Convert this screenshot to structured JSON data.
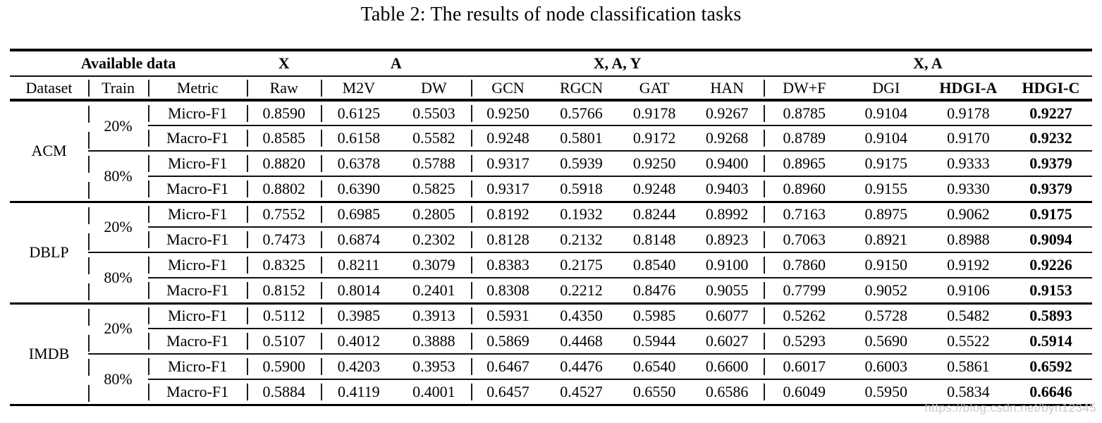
{
  "caption": "Table 2: The results of node classification tasks",
  "watermark": "https://blog.csdn.net/byn12345",
  "table": {
    "group_headers": {
      "available_data": "Available data",
      "x": "X",
      "a": "A",
      "xay": "X, A, Y",
      "xa": "X, A"
    },
    "columns": [
      "Dataset",
      "Train",
      "Metric",
      "Raw",
      "M2V",
      "DW",
      "GCN",
      "RGCN",
      "GAT",
      "HAN",
      "DW+F",
      "DGI",
      "HDGI-A",
      "HDGI-C"
    ],
    "datasets": [
      {
        "name": "ACM",
        "blocks": [
          {
            "train": "20%",
            "rows": [
              {
                "metric": "Micro-F1",
                "values": [
                  "0.8590",
                  "0.6125",
                  "0.5503",
                  "0.9250",
                  "0.5766",
                  "0.9178",
                  "0.9267",
                  "0.8785",
                  "0.9104",
                  "0.9178",
                  "0.9227"
                ]
              },
              {
                "metric": "Macro-F1",
                "values": [
                  "0.8585",
                  "0.6158",
                  "0.5582",
                  "0.9248",
                  "0.5801",
                  "0.9172",
                  "0.9268",
                  "0.8789",
                  "0.9104",
                  "0.9170",
                  "0.9232"
                ]
              }
            ]
          },
          {
            "train": "80%",
            "rows": [
              {
                "metric": "Micro-F1",
                "values": [
                  "0.8820",
                  "0.6378",
                  "0.5788",
                  "0.9317",
                  "0.5939",
                  "0.9250",
                  "0.9400",
                  "0.8965",
                  "0.9175",
                  "0.9333",
                  "0.9379"
                ]
              },
              {
                "metric": "Macro-F1",
                "values": [
                  "0.8802",
                  "0.6390",
                  "0.5825",
                  "0.9317",
                  "0.5918",
                  "0.9248",
                  "0.9403",
                  "0.8960",
                  "0.9155",
                  "0.9330",
                  "0.9379"
                ]
              }
            ]
          }
        ]
      },
      {
        "name": "DBLP",
        "blocks": [
          {
            "train": "20%",
            "rows": [
              {
                "metric": "Micro-F1",
                "values": [
                  "0.7552",
                  "0.6985",
                  "0.2805",
                  "0.8192",
                  "0.1932",
                  "0.8244",
                  "0.8992",
                  "0.7163",
                  "0.8975",
                  "0.9062",
                  "0.9175"
                ]
              },
              {
                "metric": "Macro-F1",
                "values": [
                  "0.7473",
                  "0.6874",
                  "0.2302",
                  "0.8128",
                  "0.2132",
                  "0.8148",
                  "0.8923",
                  "0.7063",
                  "0.8921",
                  "0.8988",
                  "0.9094"
                ]
              }
            ]
          },
          {
            "train": "80%",
            "rows": [
              {
                "metric": "Micro-F1",
                "values": [
                  "0.8325",
                  "0.8211",
                  "0.3079",
                  "0.8383",
                  "0.2175",
                  "0.8540",
                  "0.9100",
                  "0.7860",
                  "0.9150",
                  "0.9192",
                  "0.9226"
                ]
              },
              {
                "metric": "Macro-F1",
                "values": [
                  "0.8152",
                  "0.8014",
                  "0.2401",
                  "0.8308",
                  "0.2212",
                  "0.8476",
                  "0.9055",
                  "0.7799",
                  "0.9052",
                  "0.9106",
                  "0.9153"
                ]
              }
            ]
          }
        ]
      },
      {
        "name": "IMDB",
        "blocks": [
          {
            "train": "20%",
            "rows": [
              {
                "metric": "Micro-F1",
                "values": [
                  "0.5112",
                  "0.3985",
                  "0.3913",
                  "0.5931",
                  "0.4350",
                  "0.5985",
                  "0.6077",
                  "0.5262",
                  "0.5728",
                  "0.5482",
                  "0.5893"
                ]
              },
              {
                "metric": "Macro-F1",
                "values": [
                  "0.5107",
                  "0.4012",
                  "0.3888",
                  "0.5869",
                  "0.4468",
                  "0.5944",
                  "0.6027",
                  "0.5293",
                  "0.5690",
                  "0.5522",
                  "0.5914"
                ]
              }
            ]
          },
          {
            "train": "80%",
            "rows": [
              {
                "metric": "Micro-F1",
                "values": [
                  "0.5900",
                  "0.4203",
                  "0.3953",
                  "0.6467",
                  "0.4476",
                  "0.6540",
                  "0.6600",
                  "0.6017",
                  "0.6003",
                  "0.5861",
                  "0.6592"
                ]
              },
              {
                "metric": "Macro-F1",
                "values": [
                  "0.5884",
                  "0.4119",
                  "0.4001",
                  "0.6457",
                  "0.4527",
                  "0.6550",
                  "0.6586",
                  "0.6049",
                  "0.5950",
                  "0.5834",
                  "0.6646"
                ]
              }
            ]
          }
        ]
      }
    ]
  }
}
